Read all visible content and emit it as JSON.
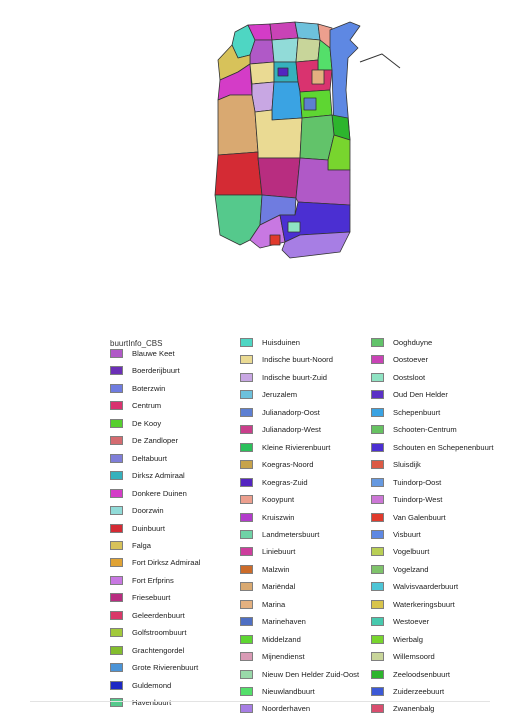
{
  "legend": {
    "title": "buurtInfo_CBS",
    "columns": [
      [
        {
          "label": "Blauwe Keet",
          "color": "#b059c7"
        },
        {
          "label": "Boerderijbuurt",
          "color": "#6b2fb6"
        },
        {
          "label": "Boterzwin",
          "color": "#6f7ce0"
        },
        {
          "label": "Centrum",
          "color": "#d9336f"
        },
        {
          "label": "De Kooy",
          "color": "#56cf2e"
        },
        {
          "label": "De Zandloper",
          "color": "#d46b70"
        },
        {
          "label": "Deltabuurt",
          "color": "#7f7ed8"
        },
        {
          "label": "Dirksz Admiraal",
          "color": "#35b1bd"
        },
        {
          "label": "Donkere Duinen",
          "color": "#d43cc7"
        },
        {
          "label": "Doorzwin",
          "color": "#91dbd8"
        },
        {
          "label": "Duinbuurt",
          "color": "#d42b34"
        },
        {
          "label": "Falga",
          "color": "#d7c25a"
        },
        {
          "label": "Fort Dirksz Admiraal",
          "color": "#e0a335"
        },
        {
          "label": "Fort Erfprins",
          "color": "#c878e2"
        },
        {
          "label": "Friesebuurt",
          "color": "#b82d80"
        },
        {
          "label": "Geleerdenbuurt",
          "color": "#d83868"
        },
        {
          "label": "Golfstroombuurt",
          "color": "#a2c93b"
        },
        {
          "label": "Grachtengordel",
          "color": "#83bd2e"
        },
        {
          "label": "Grote Rivierenbuurt",
          "color": "#4b94d7"
        },
        {
          "label": "Guldemond",
          "color": "#1d28c4"
        },
        {
          "label": "Havenbuurt",
          "color": "#55c98c"
        }
      ],
      [
        {
          "label": "Huisduinen",
          "color": "#4ed6c3"
        },
        {
          "label": "Indische buurt-Noord",
          "color": "#eada93"
        },
        {
          "label": "Indische buurt-Zuid",
          "color": "#c8a7e3"
        },
        {
          "label": "Jeruzalem",
          "color": "#6dc1dc"
        },
        {
          "label": "Julianadorp-Oost",
          "color": "#5d7fd2"
        },
        {
          "label": "Julianadorp-West",
          "color": "#c93f8b"
        },
        {
          "label": "Kleine Rivierenbuurt",
          "color": "#2bc05b"
        },
        {
          "label": "Koegras-Noord",
          "color": "#c7a34a"
        },
        {
          "label": "Koegras-Zuid",
          "color": "#5325c0"
        },
        {
          "label": "Kooypunt",
          "color": "#ec9f8e"
        },
        {
          "label": "Kruiszwin",
          "color": "#b23ccb"
        },
        {
          "label": "Landmetersbuurt",
          "color": "#6fd3a6"
        },
        {
          "label": "Liniebuurt",
          "color": "#cd3e9d"
        },
        {
          "label": "Malzwin",
          "color": "#cb6b2a"
        },
        {
          "label": "Mariëndal",
          "color": "#d9a971"
        },
        {
          "label": "Marina",
          "color": "#e4b180"
        },
        {
          "label": "Marinehaven",
          "color": "#4f6fc3"
        },
        {
          "label": "Middelzand",
          "color": "#5ed632"
        },
        {
          "label": "Mijnendienst",
          "color": "#d99bb5"
        },
        {
          "label": "Nieuw Den Helder Zuid-Oost",
          "color": "#99d8a9"
        },
        {
          "label": "Nieuwlandbuurt",
          "color": "#54df6a"
        },
        {
          "label": "Noorderhaven",
          "color": "#a77ee4"
        }
      ],
      [
        {
          "label": "Ooghduyne",
          "color": "#62c36a"
        },
        {
          "label": "Oostoever",
          "color": "#c943b6"
        },
        {
          "label": "Oostsloot",
          "color": "#8fe3c3"
        },
        {
          "label": "Oud Den Helder",
          "color": "#5a30c6"
        },
        {
          "label": "Schepenbuurt",
          "color": "#3aa3e3"
        },
        {
          "label": "Schooten-Centrum",
          "color": "#67c262"
        },
        {
          "label": "Schouten en Schepenenbuurt",
          "color": "#4b2fd2"
        },
        {
          "label": "Sluisdijk",
          "color": "#dc5a45"
        },
        {
          "label": "Tuindorp-Oost",
          "color": "#6699e0"
        },
        {
          "label": "Tuindorp-West",
          "color": "#cc77d6"
        },
        {
          "label": "Van Galenbuurt",
          "color": "#e03a2c"
        },
        {
          "label": "Visbuurt",
          "color": "#5e88e3"
        },
        {
          "label": "Vogelbuurt",
          "color": "#b9cf55"
        },
        {
          "label": "Vogelzand",
          "color": "#7fc36b"
        },
        {
          "label": "Walvisvaarderbuurt",
          "color": "#4ec5d6"
        },
        {
          "label": "Waterkeringsbuurt",
          "color": "#d8c44c"
        },
        {
          "label": "Westoever",
          "color": "#47c9ae"
        },
        {
          "label": "Wierbalg",
          "color": "#78d52e"
        },
        {
          "label": "Willemsoord",
          "color": "#c8d59a"
        },
        {
          "label": "Zeeloodsenbuurt",
          "color": "#2db52d"
        },
        {
          "label": "Zuiderzeebuurt",
          "color": "#3c59d6"
        },
        {
          "label": "Zwanenbalg",
          "color": "#d94e6f"
        }
      ]
    ]
  }
}
